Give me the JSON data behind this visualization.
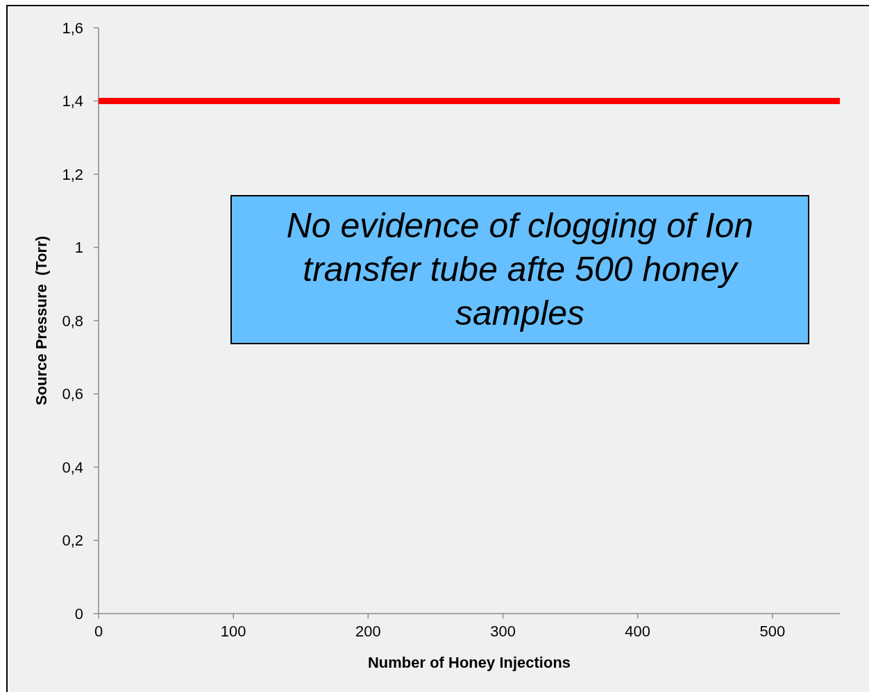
{
  "chart_data": {
    "type": "line",
    "xlabel": "Number of Honey Injections",
    "ylabel": "Source Pressure  (Torr)",
    "x": [
      0,
      550
    ],
    "series": [
      {
        "color": "#ff0000",
        "values": [
          1.4,
          1.4
        ]
      }
    ],
    "xlim": [
      0,
      550
    ],
    "xticks": [
      0,
      100,
      200,
      300,
      400,
      500
    ],
    "ylim": [
      0,
      1.6
    ],
    "yticks": [
      0,
      {
        "value": 0.2,
        "label": "0,2"
      },
      {
        "value": 0.4,
        "label": "0,4"
      },
      {
        "value": 0.6,
        "label": "0,6"
      },
      {
        "value": 0.8,
        "label": "0,8"
      },
      1,
      {
        "value": 1.2,
        "label": "1,2"
      },
      {
        "value": 1.4,
        "label": "1,4"
      },
      {
        "value": 1.6,
        "label": "1,6"
      }
    ],
    "grid": false,
    "marker": "none",
    "line_style": "solid",
    "annotations": [
      "No evidence of clogging of Ion transfer tube afte 500 honey samples"
    ]
  }
}
